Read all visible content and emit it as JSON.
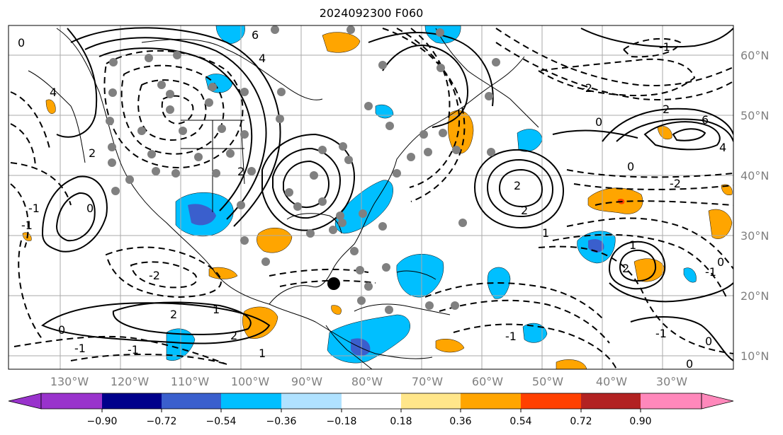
{
  "title": "2024092300 F060",
  "map": {
    "lat_labels": [
      "60°N",
      "50°N",
      "40°N",
      "30°N",
      "20°N",
      "10°N"
    ],
    "lon_labels": [
      "130°W",
      "120°W",
      "110°W",
      "100°W",
      "90°W",
      "80°W",
      "70°W",
      "60°W",
      "50°W",
      "40°W",
      "30°W"
    ],
    "contour_labels": [
      "6",
      "4",
      "0",
      "4",
      "2",
      "0",
      "2",
      "2",
      "4",
      "6",
      "-2",
      "-1",
      "0",
      "2",
      "2",
      "-1",
      "-1",
      "1",
      "2",
      "-2",
      "2",
      "1",
      "-1",
      "1",
      "2",
      "-1",
      "0",
      "1",
      "-2",
      "0",
      "-1",
      "0",
      "0",
      "-1",
      "0",
      "-1"
    ],
    "marker": "storm-center-dot"
  },
  "colorbar": {
    "ticks": [
      "−0.90",
      "−0.72",
      "−0.54",
      "−0.36",
      "−0.18",
      "0.18",
      "0.36",
      "0.54",
      "0.72",
      "0.90"
    ],
    "colors": [
      "#9933cc",
      "#00008b",
      "#3a5fcd",
      "#00bfff",
      "#b0e2ff",
      "#ffffff",
      "#ffe68a",
      "#ffa500",
      "#ff4000",
      "#b22222",
      "#ff88bb"
    ],
    "extend": "both"
  }
}
